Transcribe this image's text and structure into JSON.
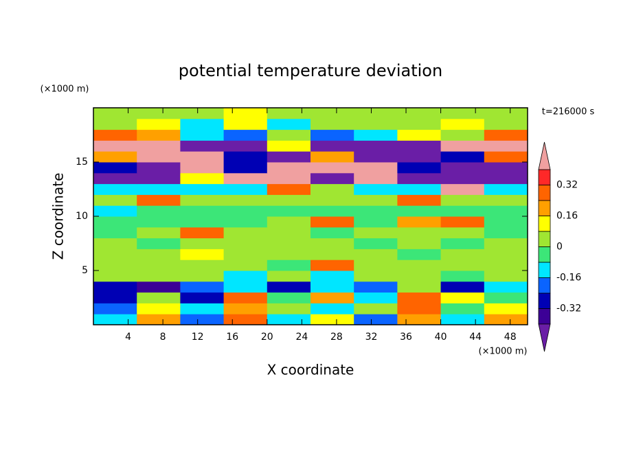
{
  "chart_data": {
    "type": "contour",
    "title": "potential temperature deviation",
    "xlabel": "X coordinate",
    "ylabel": "Z coordinate",
    "x_unit": "(×1000 m)",
    "y_unit": "(×1000 m)",
    "annotation": "t=216000 s",
    "xlim": [
      0,
      50
    ],
    "ylim": [
      0,
      20
    ],
    "xticks": [
      4,
      8,
      12,
      16,
      20,
      24,
      28,
      32,
      36,
      40,
      44,
      48
    ],
    "yticks": [
      5,
      10,
      15
    ],
    "x_bins": [
      0,
      5,
      10,
      15,
      20,
      25,
      30,
      35,
      40,
      45,
      50
    ],
    "y_bins": [
      0,
      1,
      2,
      3,
      4,
      5,
      6,
      7,
      8,
      9,
      10,
      11,
      12,
      13,
      14,
      15,
      16,
      17,
      18,
      19,
      20
    ],
    "values": [
      [
        -0.1,
        0.2,
        -0.2,
        0.25,
        -0.1,
        0.1,
        -0.2,
        0.2,
        -0.1,
        0.2
      ],
      [
        -0.2,
        0.1,
        -0.1,
        0.2,
        0.05,
        -0.1,
        0.05,
        0.3,
        -0.05,
        0.1
      ],
      [
        -0.25,
        0.05,
        -0.3,
        0.3,
        -0.05,
        0.2,
        -0.1,
        0.25,
        0.1,
        -0.05
      ],
      [
        -0.3,
        -0.35,
        -0.2,
        -0.1,
        -0.3,
        -0.1,
        -0.2,
        0.05,
        -0.25,
        -0.1
      ],
      [
        0.02,
        0.05,
        0.05,
        -0.1,
        0.05,
        -0.1,
        0.05,
        0.05,
        -0.05,
        0.05
      ],
      [
        0.05,
        0.02,
        0.05,
        0.05,
        -0.05,
        0.3,
        0.05,
        0.05,
        0.02,
        0.05
      ],
      [
        0.05,
        0.05,
        0.1,
        0.05,
        0.05,
        0.05,
        0.05,
        -0.05,
        0.05,
        0.05
      ],
      [
        0.05,
        -0.05,
        0.05,
        0.05,
        0.05,
        0.05,
        -0.05,
        0.05,
        -0.05,
        0.05
      ],
      [
        -0.05,
        0.05,
        0.3,
        0.05,
        0.05,
        -0.05,
        0.05,
        0.05,
        0.05,
        -0.05
      ],
      [
        -0.05,
        -0.05,
        -0.05,
        -0.05,
        0.05,
        0.3,
        -0.05,
        0.2,
        0.3,
        -0.05
      ],
      [
        -0.1,
        -0.05,
        -0.05,
        -0.05,
        -0.05,
        -0.05,
        -0.05,
        -0.05,
        -0.05,
        -0.05
      ],
      [
        0.05,
        0.3,
        0.05,
        0.05,
        0.05,
        0.05,
        0.05,
        0.3,
        0.05,
        0.05
      ],
      [
        -0.15,
        -0.1,
        -0.1,
        -0.15,
        0.3,
        0.05,
        -0.15,
        -0.1,
        0.45,
        -0.1
      ],
      [
        -0.45,
        -0.45,
        0.1,
        0.45,
        0.45,
        -0.45,
        0.45,
        -0.45,
        -0.45,
        -0.45
      ],
      [
        -0.3,
        -0.45,
        0.45,
        -0.3,
        0.45,
        0.45,
        0.45,
        -0.3,
        -0.45,
        -0.45
      ],
      [
        0.2,
        0.45,
        0.45,
        -0.3,
        -0.45,
        0.2,
        -0.45,
        -0.45,
        -0.3,
        0.3
      ],
      [
        0.45,
        0.45,
        -0.45,
        -0.45,
        0.1,
        -0.45,
        -0.45,
        -0.45,
        0.45,
        0.45
      ],
      [
        0.3,
        0.2,
        -0.1,
        -0.2,
        0.05,
        -0.2,
        -0.1,
        0.1,
        0.05,
        0.3
      ],
      [
        0.05,
        0.1,
        -0.1,
        0.1,
        -0.1,
        0.05,
        0.05,
        0.05,
        0.1,
        0.05
      ],
      [
        0.05,
        0.05,
        0.05,
        0.1,
        0.05,
        0.05,
        0.05,
        0.05,
        0.05,
        0.05
      ]
    ],
    "levels": [
      -0.4,
      -0.32,
      -0.24,
      -0.16,
      -0.08,
      0,
      0.08,
      0.16,
      0.24,
      0.32,
      0.4
    ],
    "colors": [
      "#6a1ea6",
      "#3c0096",
      "#0000b4",
      "#0a64ff",
      "#00e6ff",
      "#3ce678",
      "#a0e632",
      "#ffff00",
      "#ffa000",
      "#ff6400",
      "#ff2828",
      "#f0a0a0"
    ],
    "colorbar_ticks": [
      0.32,
      0.16,
      0,
      -0.16,
      -0.32
    ]
  }
}
